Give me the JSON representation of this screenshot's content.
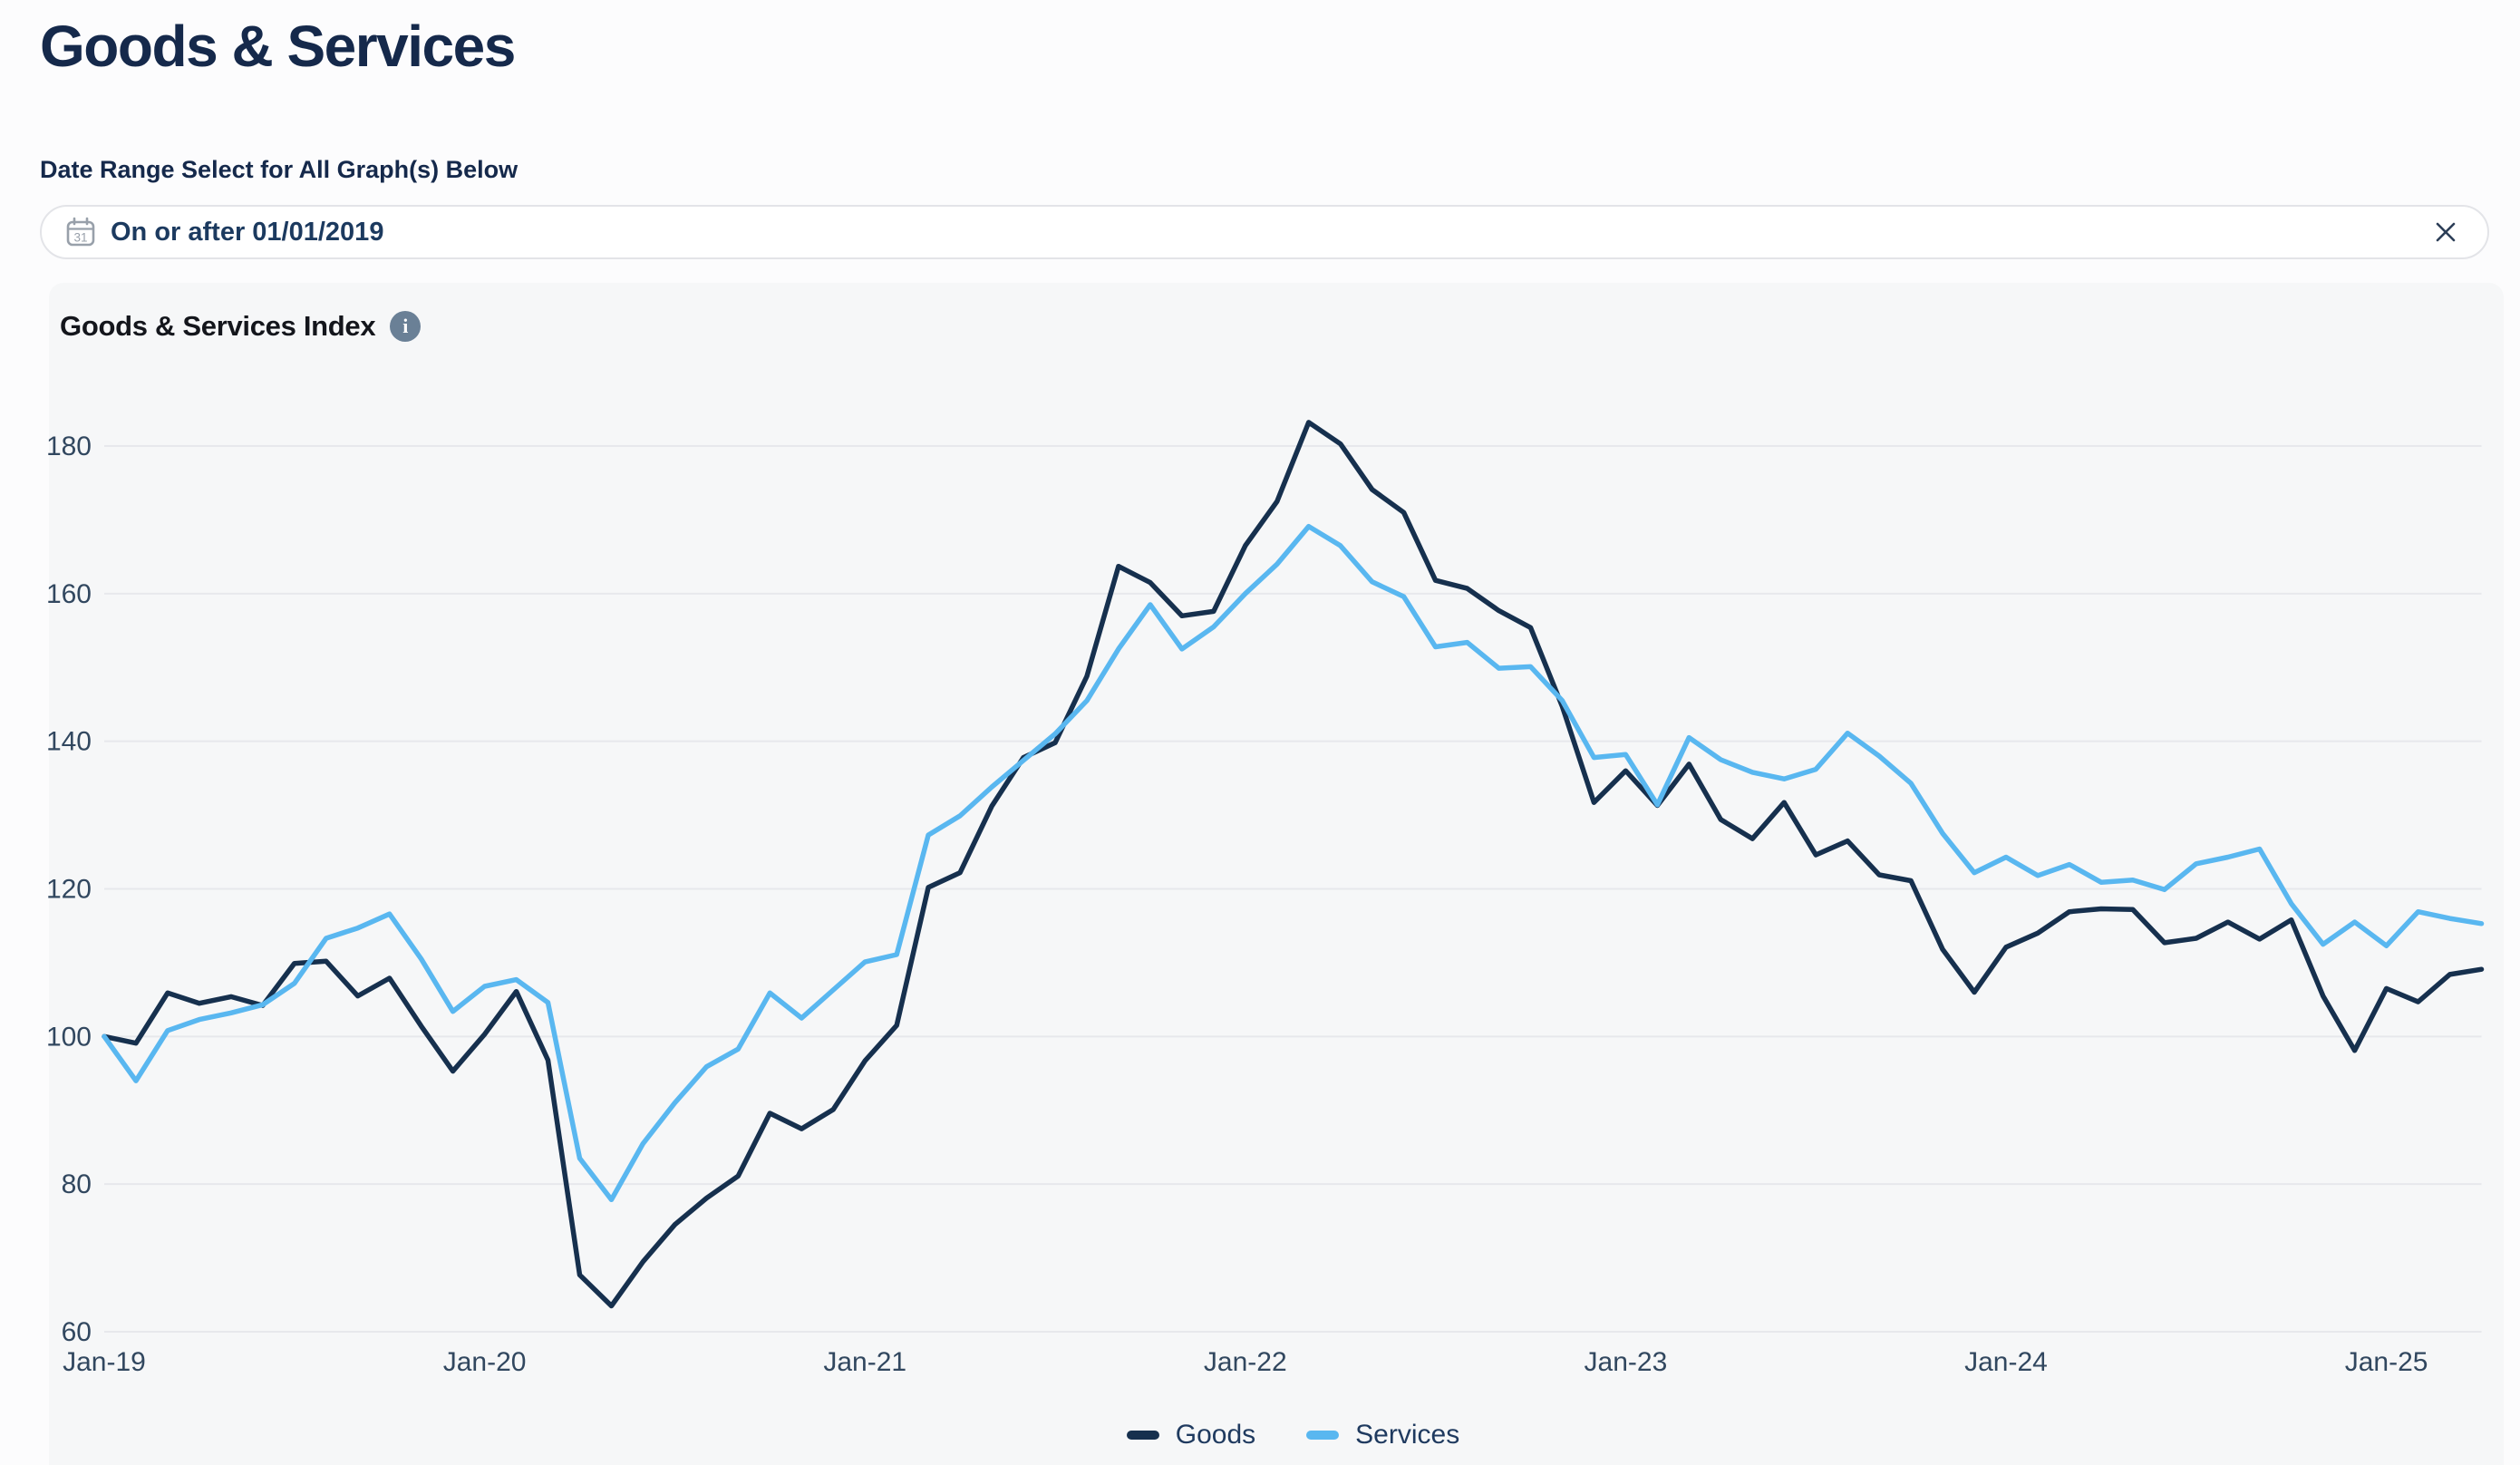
{
  "header": {
    "title": "Goods & Services"
  },
  "filter": {
    "label": "Date Range Select for All Graph(s) Below",
    "value": "On or after 01/01/2019",
    "calendar_day": "31"
  },
  "chart": {
    "title": "Goods & Services Index",
    "info_glyph": "i"
  },
  "colors": {
    "goods": "#16304e",
    "services": "#59b7f0",
    "grid": "#e7e8ec",
    "axis_text": "#31475f",
    "accent_text": "#15294b"
  },
  "chart_data": {
    "type": "line",
    "title": "Goods & Services Index",
    "grid": true,
    "legend_position": "bottom",
    "ylim": [
      55,
      190
    ],
    "yticks": [
      60,
      80,
      100,
      120,
      140,
      160,
      180
    ],
    "xtick_labels": [
      "Jan-19",
      "Jan-20",
      "Jan-21",
      "Jan-22",
      "Jan-23",
      "Jan-24",
      "Jan-25"
    ],
    "xtick_month_index": [
      0,
      12,
      24,
      36,
      48,
      60,
      72
    ],
    "x": [
      "Jan-19",
      "Feb-19",
      "Mar-19",
      "Apr-19",
      "May-19",
      "Jun-19",
      "Jul-19",
      "Aug-19",
      "Sep-19",
      "Oct-19",
      "Nov-19",
      "Dec-19",
      "Jan-20",
      "Feb-20",
      "Mar-20",
      "Apr-20",
      "May-20",
      "Jun-20",
      "Jul-20",
      "Aug-20",
      "Sep-20",
      "Oct-20",
      "Nov-20",
      "Dec-20",
      "Jan-21",
      "Feb-21",
      "Mar-21",
      "Apr-21",
      "May-21",
      "Jun-21",
      "Jul-21",
      "Aug-21",
      "Sep-21",
      "Oct-21",
      "Nov-21",
      "Dec-21",
      "Jan-22",
      "Feb-22",
      "Mar-22",
      "Apr-22",
      "May-22",
      "Jun-22",
      "Jul-22",
      "Aug-22",
      "Sep-22",
      "Oct-22",
      "Nov-22",
      "Dec-22",
      "Jan-23",
      "Feb-23",
      "Mar-23",
      "Apr-23",
      "May-23",
      "Jun-23",
      "Jul-23",
      "Aug-23",
      "Sep-23",
      "Oct-23",
      "Nov-23",
      "Dec-23",
      "Jan-24",
      "Feb-24",
      "Mar-24",
      "Apr-24",
      "May-24",
      "Jun-24",
      "Jul-24",
      "Aug-24",
      "Sep-24",
      "Oct-24",
      "Nov-24",
      "Dec-24",
      "Jan-25",
      "Feb-25",
      "Mar-25",
      "Apr-25"
    ],
    "series": [
      {
        "name": "Goods",
        "color": "#16304e",
        "values": [
          100,
          99.1,
          105.9,
          104.5,
          105.4,
          104.2,
          109.9,
          110.2,
          105.5,
          107.9,
          101.4,
          95.3,
          100.3,
          106.1,
          96.8,
          67.7,
          63.5,
          69.5,
          74.5,
          78.1,
          81.1,
          89.6,
          87.5,
          90.1,
          96.7,
          101.5,
          120.2,
          122.2,
          131.2,
          137.8,
          139.8,
          148.8,
          163.7,
          161.5,
          157.0,
          157.6,
          166.5,
          172.5,
          183.2,
          180.3,
          174.1,
          171.0,
          161.8,
          160.7,
          157.7,
          155.4,
          144.7,
          131.7,
          136.0,
          131.3,
          136.9,
          129.4,
          126.8,
          131.7,
          124.6,
          126.5,
          121.9,
          121.1,
          111.8,
          106.0,
          112.1,
          114.0,
          116.9,
          117.3,
          117.2,
          112.7,
          113.3,
          115.5,
          113.2,
          115.8,
          105.5,
          98.1,
          106.5,
          104.7,
          108.4,
          109.1
        ]
      },
      {
        "name": "Services",
        "color": "#59b7f0",
        "values": [
          100,
          94.0,
          100.8,
          102.3,
          103.2,
          104.3,
          107.2,
          113.3,
          114.7,
          116.6,
          110.5,
          103.4,
          106.8,
          107.7,
          104.6,
          83.5,
          77.9,
          85.5,
          91.0,
          95.9,
          98.3,
          105.9,
          102.5,
          106.3,
          110.1,
          111.1,
          127.3,
          129.9,
          133.8,
          137.4,
          141.0,
          145.5,
          152.5,
          158.5,
          152.5,
          155.5,
          160.0,
          164.0,
          169.1,
          166.5,
          161.6,
          159.6,
          152.8,
          153.4,
          149.9,
          150.1,
          145.5,
          137.8,
          138.2,
          131.4,
          140.5,
          137.5,
          135.8,
          134.9,
          136.2,
          141.1,
          138.0,
          134.3,
          127.5,
          122.2,
          124.3,
          121.8,
          123.3,
          120.9,
          121.2,
          119.9,
          123.4,
          124.3,
          125.4,
          118.0,
          112.5,
          115.5,
          112.3,
          116.9,
          116.0,
          115.3
        ]
      }
    ]
  },
  "legend": [
    {
      "name": "Goods",
      "color": "#16304e"
    },
    {
      "name": "Services",
      "color": "#59b7f0"
    }
  ]
}
